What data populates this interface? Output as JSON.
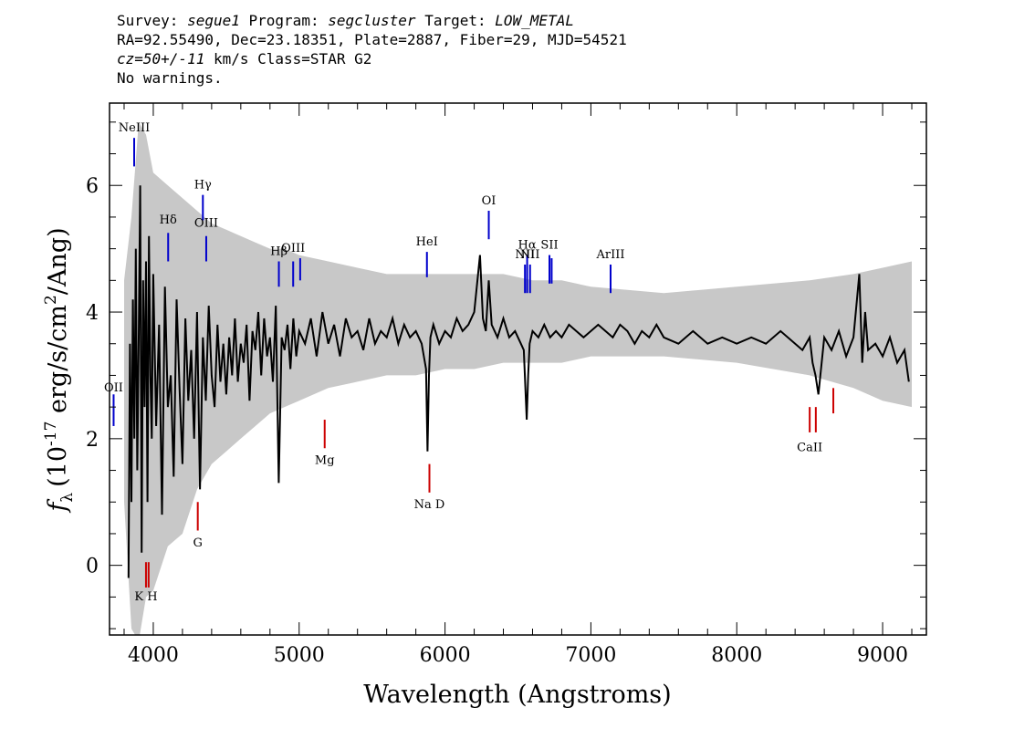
{
  "header": {
    "survey_label": "Survey:",
    "survey": "segue1",
    "program_label": "Program:",
    "program": "segcluster",
    "target_label": "Target:",
    "target": "LOW_METAL",
    "line2": "RA=92.55490, Dec=23.18351, Plate=2887, Fiber=29, MJD=54521",
    "cz": "cz=50+/-11",
    "cz_rest": " km/s Class=STAR G2",
    "line4": "No warnings."
  },
  "chart_data": {
    "type": "line",
    "title": "",
    "xlabel": "Wavelength (Angstroms)",
    "ylabel_prefix": "f",
    "ylabel_sub": "λ",
    "ylabel_rest": "(10",
    "ylabel_exp": "-17",
    "ylabel_units": " erg/s/cm",
    "ylabel_units_exp": "2",
    "ylabel_units_end": "/Ang)",
    "xlim": [
      3700,
      9300
    ],
    "ylim": [
      -1.1,
      7.3
    ],
    "x_ticks": [
      4000,
      5000,
      6000,
      7000,
      8000,
      9000
    ],
    "x_tick_labels": [
      "4000",
      "5000",
      "6000",
      "7000",
      "8000",
      "9000"
    ],
    "y_ticks": [
      0,
      2,
      4,
      6
    ],
    "y_tick_labels": [
      "0",
      "2",
      "4",
      "6"
    ],
    "series": [
      {
        "kind": "error",
        "color": "#c8c8c8",
        "x": [
          3800,
          3850,
          3900,
          3950,
          4000,
          4100,
          4200,
          4300,
          4400,
          4500,
          4600,
          4700,
          4800,
          4900,
          5000,
          5200,
          5400,
          5600,
          5800,
          6000,
          6200,
          6400,
          6600,
          6800,
          7000,
          7500,
          8000,
          8500,
          8800,
          9000,
          9200
        ],
        "low": [
          1.0,
          -1.0,
          -1.2,
          -0.5,
          -0.4,
          0.3,
          0.5,
          1.2,
          1.6,
          1.8,
          2.0,
          2.2,
          2.4,
          2.5,
          2.6,
          2.8,
          2.9,
          3.0,
          3.0,
          3.1,
          3.1,
          3.2,
          3.2,
          3.2,
          3.3,
          3.3,
          3.2,
          3.0,
          2.8,
          2.6,
          2.5
        ],
        "high": [
          4.5,
          5.5,
          7.0,
          6.8,
          6.2,
          6.0,
          5.8,
          5.6,
          5.4,
          5.3,
          5.2,
          5.1,
          5.0,
          5.0,
          4.9,
          4.8,
          4.7,
          4.6,
          4.6,
          4.6,
          4.6,
          4.6,
          4.5,
          4.5,
          4.4,
          4.3,
          4.4,
          4.5,
          4.6,
          4.7,
          4.8
        ]
      },
      {
        "kind": "flux",
        "color": "#000000",
        "x": [
          3830,
          3840,
          3850,
          3860,
          3870,
          3880,
          3890,
          3900,
          3910,
          3920,
          3930,
          3940,
          3950,
          3960,
          3970,
          3980,
          3990,
          4000,
          4020,
          4040,
          4060,
          4080,
          4100,
          4120,
          4140,
          4160,
          4180,
          4200,
          4220,
          4240,
          4260,
          4280,
          4300,
          4320,
          4340,
          4360,
          4380,
          4400,
          4420,
          4440,
          4460,
          4480,
          4500,
          4520,
          4540,
          4560,
          4580,
          4600,
          4620,
          4640,
          4660,
          4680,
          4700,
          4720,
          4740,
          4760,
          4780,
          4800,
          4820,
          4840,
          4860,
          4880,
          4900,
          4920,
          4940,
          4960,
          4980,
          5000,
          5040,
          5080,
          5120,
          5160,
          5200,
          5240,
          5280,
          5320,
          5360,
          5400,
          5440,
          5480,
          5520,
          5560,
          5600,
          5640,
          5680,
          5720,
          5760,
          5800,
          5840,
          5870,
          5880,
          5890,
          5900,
          5920,
          5960,
          6000,
          6040,
          6080,
          6120,
          6160,
          6200,
          6240,
          6260,
          6280,
          6300,
          6320,
          6360,
          6400,
          6440,
          6480,
          6520,
          6540,
          6560,
          6570,
          6580,
          6600,
          6640,
          6680,
          6720,
          6760,
          6800,
          6850,
          6900,
          6950,
          7000,
          7050,
          7100,
          7150,
          7200,
          7250,
          7300,
          7350,
          7400,
          7450,
          7500,
          7600,
          7700,
          7800,
          7900,
          8000,
          8100,
          8200,
          8300,
          8400,
          8450,
          8500,
          8520,
          8540,
          8560,
          8600,
          8650,
          8700,
          8750,
          8800,
          8840,
          8860,
          8880,
          8900,
          8950,
          9000,
          9050,
          9100,
          9150,
          9180
        ],
        "y": [
          -0.2,
          3.5,
          1.0,
          4.2,
          2.0,
          5.0,
          1.5,
          3.6,
          6.0,
          0.2,
          4.5,
          2.5,
          4.8,
          1.0,
          5.2,
          3.0,
          2.0,
          4.6,
          2.2,
          3.8,
          0.8,
          4.4,
          2.5,
          3.0,
          1.4,
          4.2,
          2.8,
          1.6,
          3.9,
          2.6,
          3.4,
          2.0,
          4.0,
          1.2,
          3.6,
          2.6,
          4.1,
          3.0,
          2.5,
          3.8,
          2.9,
          3.5,
          2.7,
          3.6,
          3.0,
          3.9,
          2.9,
          3.5,
          3.2,
          3.8,
          2.6,
          3.7,
          3.4,
          4.0,
          3.0,
          3.9,
          3.3,
          3.6,
          2.9,
          4.1,
          1.3,
          3.6,
          3.4,
          3.8,
          3.1,
          3.9,
          3.3,
          3.7,
          3.5,
          3.9,
          3.3,
          4.0,
          3.5,
          3.8,
          3.3,
          3.9,
          3.6,
          3.7,
          3.4,
          3.9,
          3.5,
          3.7,
          3.6,
          3.9,
          3.5,
          3.8,
          3.6,
          3.7,
          3.5,
          3.1,
          1.8,
          3.0,
          3.6,
          3.8,
          3.5,
          3.7,
          3.6,
          3.9,
          3.7,
          3.8,
          4.0,
          4.9,
          3.9,
          3.7,
          4.5,
          3.8,
          3.6,
          3.9,
          3.6,
          3.7,
          3.5,
          3.4,
          2.3,
          3.0,
          3.5,
          3.7,
          3.6,
          3.8,
          3.6,
          3.7,
          3.6,
          3.8,
          3.7,
          3.6,
          3.7,
          3.8,
          3.7,
          3.6,
          3.8,
          3.7,
          3.5,
          3.7,
          3.6,
          3.8,
          3.6,
          3.5,
          3.7,
          3.5,
          3.6,
          3.5,
          3.6,
          3.5,
          3.7,
          3.5,
          3.4,
          3.6,
          3.2,
          3.0,
          2.7,
          3.6,
          3.4,
          3.7,
          3.3,
          3.6,
          4.6,
          3.2,
          4.0,
          3.4,
          3.5,
          3.3,
          3.6,
          3.2,
          3.4,
          2.9
        ]
      }
    ],
    "emission_lines": [
      {
        "label": "OII",
        "x": 3728,
        "y0": 2.2,
        "y1": 2.7,
        "label_y": 2.75,
        "color": "#0000cc"
      },
      {
        "label": "NeIII",
        "x": 3869,
        "y0": 6.3,
        "y1": 6.75,
        "label_y": 6.85,
        "color": "#0000cc"
      },
      {
        "label": "Hδ",
        "x": 4102,
        "y0": 4.8,
        "y1": 5.25,
        "label_y": 5.4,
        "color": "#0000cc"
      },
      {
        "label": "Hγ",
        "x": 4340,
        "y0": 5.45,
        "y1": 5.85,
        "label_y": 5.95,
        "color": "#0000cc"
      },
      {
        "label": "OIII",
        "x": 4363,
        "y0": 4.8,
        "y1": 5.2,
        "label_y": 5.35,
        "color": "#0000cc"
      },
      {
        "label": "Hβ",
        "x": 4861,
        "y0": 4.4,
        "y1": 4.8,
        "label_y": 4.9,
        "color": "#0000cc"
      },
      {
        "label": "OIII",
        "x": 4959,
        "y0": 4.4,
        "y1": 4.8,
        "label_y": 4.95,
        "color": "#0000cc"
      },
      {
        "label": "",
        "x": 5007,
        "y0": 4.5,
        "y1": 4.85,
        "label_y": 0,
        "color": "#0000cc"
      },
      {
        "label": "HeI",
        "x": 5876,
        "y0": 4.55,
        "y1": 4.95,
        "label_y": 5.05,
        "color": "#0000cc"
      },
      {
        "label": "OI",
        "x": 6300,
        "y0": 5.15,
        "y1": 5.6,
        "label_y": 5.7,
        "color": "#0000cc"
      },
      {
        "label": "NII",
        "x": 6548,
        "y0": 4.3,
        "y1": 4.75,
        "label_y": 4.85,
        "color": "#0000cc"
      },
      {
        "label": "Hα",
        "x": 6563,
        "y0": 4.3,
        "y1": 4.9,
        "label_y": 5.0,
        "color": "#0000cc"
      },
      {
        "label": "NII",
        "x": 6583,
        "y0": 4.3,
        "y1": 4.75,
        "label_y": 4.85,
        "color": "#0000cc"
      },
      {
        "label": "SII",
        "x": 6716,
        "y0": 4.45,
        "y1": 4.9,
        "label_y": 5.0,
        "color": "#0000cc"
      },
      {
        "label": "",
        "x": 6731,
        "y0": 4.45,
        "y1": 4.85,
        "label_y": 0,
        "color": "#0000cc"
      },
      {
        "label": "ArIII",
        "x": 7135,
        "y0": 4.3,
        "y1": 4.75,
        "label_y": 4.85,
        "color": "#0000cc"
      }
    ],
    "absorption_lines": [
      {
        "label": "K H",
        "x": 3950,
        "y0": -0.35,
        "y1": 0.05,
        "label_y": -0.55,
        "color": "#cc0000"
      },
      {
        "label": "",
        "x": 3968,
        "y0": -0.35,
        "y1": 0.05,
        "label_y": 0,
        "color": "#cc0000"
      },
      {
        "label": "G",
        "x": 4305,
        "y0": 0.55,
        "y1": 1.0,
        "label_y": 0.3,
        "color": "#cc0000"
      },
      {
        "label": "Mg",
        "x": 5175,
        "y0": 1.85,
        "y1": 2.3,
        "label_y": 1.6,
        "color": "#cc0000"
      },
      {
        "label": "Na D",
        "x": 5893,
        "y0": 1.15,
        "y1": 1.6,
        "label_y": 0.9,
        "color": "#cc0000"
      },
      {
        "label": "CaII",
        "x": 8500,
        "y0": 2.1,
        "y1": 2.5,
        "label_y": 1.8,
        "color": "#cc0000"
      },
      {
        "label": "",
        "x": 8542,
        "y0": 2.1,
        "y1": 2.5,
        "label_y": 0,
        "color": "#cc0000"
      },
      {
        "label": "",
        "x": 8662,
        "y0": 2.4,
        "y1": 2.8,
        "label_y": 0,
        "color": "#cc0000"
      }
    ]
  }
}
